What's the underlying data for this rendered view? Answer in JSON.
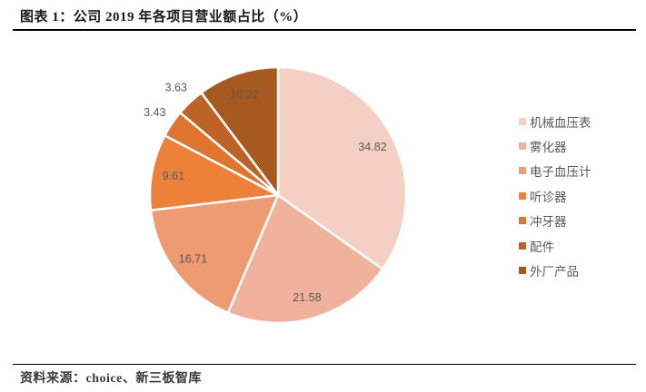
{
  "header": {
    "title": "图表 1：公司 2019 年各项目营业额占比（%）"
  },
  "footer": {
    "source": "资料来源：choice、新三板智库"
  },
  "chart_data": {
    "type": "pie",
    "title": "公司 2019 年各项目营业额占比（%）",
    "categories": [
      "机械血压表",
      "雾化器",
      "电子血压计",
      "听诊器",
      "冲牙器",
      "配件",
      "外厂产品"
    ],
    "values": [
      34.82,
      21.58,
      16.71,
      9.61,
      3.43,
      3.63,
      10.22
    ],
    "colors": [
      "#F4CFC3",
      "#F0B29D",
      "#EE9A72",
      "#ED8139",
      "#DE742E",
      "#BD6327",
      "#A7591F"
    ],
    "data_label_color": "#595959",
    "start_angle_deg": 0,
    "direction": "clockwise",
    "legend_position": "right",
    "data_labels_shown": true
  }
}
